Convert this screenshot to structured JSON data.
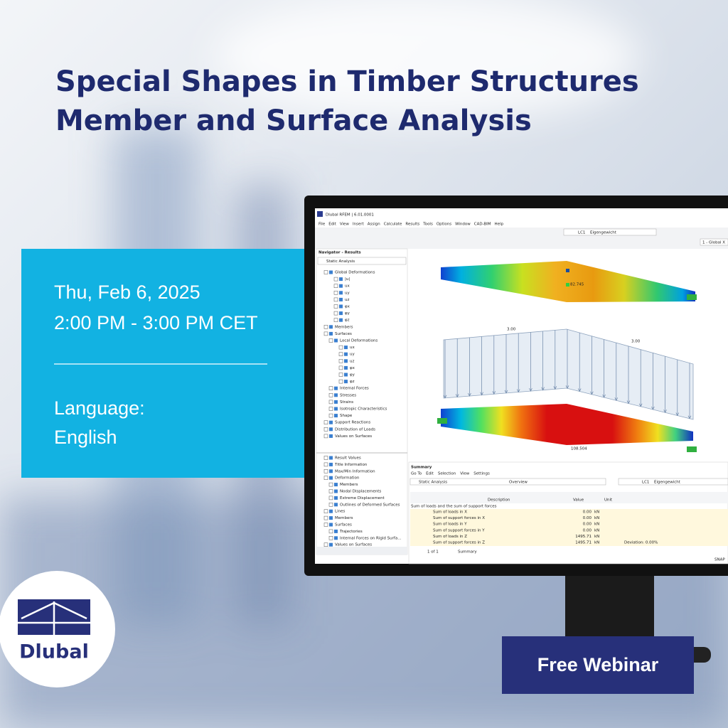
{
  "header": {
    "title_line1": "Special Shapes in Timber Structures",
    "title_line2": "Member and Surface Analysis"
  },
  "event": {
    "date": "Thu, Feb 6, 2025",
    "time": "2:00 PM - 3:00 PM CET",
    "language_label": "Language:",
    "language": "English"
  },
  "logo": {
    "name": "Dlubal"
  },
  "cta": {
    "label": "Free Webinar"
  },
  "app": {
    "window_title": "Dlubal RFEM | 6.01.0001",
    "menu": [
      "File",
      "Edit",
      "View",
      "Insert",
      "Assign",
      "Calculate",
      "Results",
      "Tools",
      "Options",
      "Window",
      "CAD-BIM",
      "Help"
    ],
    "toolbar": {
      "load_case": "LC1",
      "load_case_name": "Eigengewicht",
      "coordinate_system": "1 - Global X"
    },
    "navigator": {
      "title": "Navigator - Results",
      "dropdown": "Static Analysis",
      "items": [
        "Global Deformations",
        "|u|",
        "ux",
        "uy",
        "uz",
        "φx",
        "φy",
        "φz",
        "Members",
        "Surfaces",
        "Local Deformations",
        "ux",
        "uy",
        "uz",
        "φx",
        "φy",
        "φz",
        "Internal Forces",
        "Stresses",
        "Strains",
        "Isotropic Characteristics",
        "Shape",
        "Support Reactions",
        "Distribution of Loads",
        "Values on Surfaces"
      ],
      "display_items": [
        "Result Values",
        "Title Information",
        "Max/Min Information",
        "Deformation",
        "Members",
        "Nodal Displacements",
        "Extreme Displacement",
        "Outlines of Deformed Surfaces",
        "Lines",
        "Members",
        "Surfaces",
        "Trajectories",
        "Internal Forces on Rigid Surfa...",
        "Values on Surfaces"
      ]
    },
    "viewport": {
      "max_deformation": "82.745",
      "load_left": "3.00",
      "load_right": "3.00",
      "max_result": "108.504"
    },
    "summary": {
      "title": "Summary",
      "menu": [
        "Go To",
        "Edit",
        "Selection",
        "View",
        "Settings"
      ],
      "analysis": "Static Analysis",
      "view": "Overview",
      "load_case": "LC1",
      "load_case_name": "Eigengewicht",
      "columns": [
        "Description",
        "Value",
        "Unit"
      ],
      "group": "Sum of loads and the sum of support forces",
      "rows": [
        [
          "Sum of loads in X",
          "0.00",
          "kN",
          ""
        ],
        [
          "Sum of support forces in X",
          "0.00",
          "kN",
          ""
        ],
        [
          "Sum of loads in Y",
          "0.00",
          "kN",
          ""
        ],
        [
          "Sum of support forces in Y",
          "0.00",
          "kN",
          ""
        ],
        [
          "Sum of loads in Z",
          "1495.71",
          "kN",
          ""
        ],
        [
          "Sum of support forces in Z",
          "1495.71",
          "kN",
          "Deviation: 0.00%"
        ]
      ],
      "pager": "1 of 1",
      "tab": "Summary",
      "status": "SNAP"
    }
  }
}
